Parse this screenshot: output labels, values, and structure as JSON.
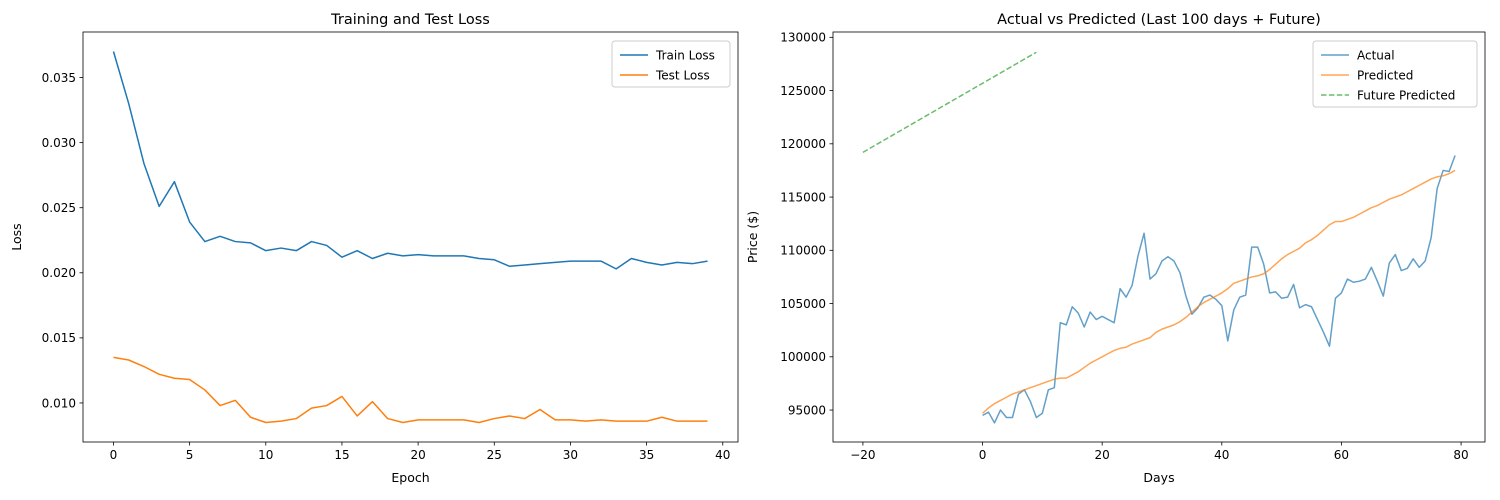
{
  "chart_data": [
    {
      "type": "line",
      "title": "Training and Test Loss",
      "xlabel": "Epoch",
      "ylabel": "Loss",
      "xlim": [
        -2,
        41
      ],
      "ylim": [
        0.007,
        0.0385
      ],
      "xticks": [
        0,
        5,
        10,
        15,
        20,
        25,
        30,
        35,
        40
      ],
      "xtick_labels": [
        "0",
        "5",
        "10",
        "15",
        "20",
        "25",
        "30",
        "35",
        "40"
      ],
      "yticks": [
        0.01,
        0.015,
        0.02,
        0.025,
        0.03,
        0.035
      ],
      "ytick_labels": [
        "0.010",
        "0.015",
        "0.020",
        "0.025",
        "0.030",
        "0.035"
      ],
      "grid": false,
      "legend_position": "top-right",
      "series": [
        {
          "name": "Train Loss",
          "color": "#1f77b4",
          "style": "solid",
          "x_start": 0,
          "values": [
            0.037,
            0.033,
            0.0284,
            0.0251,
            0.027,
            0.0239,
            0.0224,
            0.0228,
            0.0224,
            0.0223,
            0.0217,
            0.0219,
            0.0217,
            0.0224,
            0.0221,
            0.0212,
            0.0217,
            0.0211,
            0.0215,
            0.0213,
            0.0214,
            0.0213,
            0.0213,
            0.0213,
            0.0211,
            0.021,
            0.0205,
            0.0206,
            0.0207,
            0.0208,
            0.0209,
            0.0209,
            0.0209,
            0.0203,
            0.0211,
            0.0208,
            0.0206,
            0.0208,
            0.0207,
            0.0209
          ]
        },
        {
          "name": "Test Loss",
          "color": "#ff7f0e",
          "style": "solid",
          "x_start": 0,
          "values": [
            0.0135,
            0.0133,
            0.0128,
            0.0122,
            0.0119,
            0.0118,
            0.011,
            0.0098,
            0.0102,
            0.0089,
            0.0085,
            0.0086,
            0.0088,
            0.0096,
            0.0098,
            0.0105,
            0.009,
            0.0101,
            0.0088,
            0.0085,
            0.0087,
            0.0087,
            0.0087,
            0.0087,
            0.0085,
            0.0088,
            0.009,
            0.0088,
            0.0095,
            0.0087,
            0.0087,
            0.0086,
            0.0087,
            0.0086,
            0.0086,
            0.0086,
            0.0089,
            0.0086,
            0.0086,
            0.0086
          ]
        }
      ]
    },
    {
      "type": "line",
      "title": "Actual vs Predicted (Last 100 days + Future)",
      "xlabel": "Days",
      "ylabel": "Price ($)",
      "xlim": [
        -25,
        84
      ],
      "ylim": [
        92000,
        130500
      ],
      "xticks": [
        -20,
        0,
        20,
        40,
        60,
        80
      ],
      "xtick_labels": [
        "−20",
        "0",
        "20",
        "40",
        "60",
        "80"
      ],
      "yticks": [
        95000,
        100000,
        105000,
        110000,
        115000,
        120000,
        125000,
        130000
      ],
      "ytick_labels": [
        "95000",
        "100000",
        "105000",
        "110000",
        "115000",
        "120000",
        "125000",
        "130000"
      ],
      "grid": false,
      "legend_position": "top-right",
      "series": [
        {
          "name": "Actual",
          "color": "#1f77b4",
          "style": "solid",
          "opacity": 0.7,
          "x_start": 0,
          "values": [
            94500,
            94800,
            93800,
            95000,
            94300,
            94300,
            96500,
            96900,
            95800,
            94300,
            94700,
            96900,
            97100,
            103200,
            103000,
            104700,
            104100,
            102800,
            104200,
            103500,
            103800,
            103500,
            103200,
            106400,
            105600,
            106700,
            109500,
            111600,
            107300,
            107800,
            109000,
            109400,
            109000,
            107900,
            105700,
            104000,
            104600,
            105600,
            105800,
            105400,
            104800,
            101500,
            104400,
            105600,
            105800,
            110300,
            110300,
            108700,
            106000,
            106100,
            105500,
            105600,
            106800,
            104600,
            104900,
            104700,
            103500,
            102300,
            101000,
            105500,
            106000,
            107300,
            107000,
            107100,
            107300,
            108400,
            107100,
            105700,
            108800,
            109600,
            108100,
            108300,
            109200,
            108400,
            109000,
            111200,
            115800,
            117500,
            117400,
            118900
          ]
        },
        {
          "name": "Predicted",
          "color": "#ff7f0e",
          "style": "solid",
          "opacity": 0.7,
          "x_start": 0,
          "values": [
            94700,
            95200,
            95600,
            95900,
            96200,
            96500,
            96700,
            96900,
            97100,
            97300,
            97500,
            97700,
            97900,
            98000,
            98000,
            98300,
            98600,
            99000,
            99400,
            99700,
            100000,
            100300,
            100600,
            100800,
            100900,
            101200,
            101400,
            101600,
            101800,
            102300,
            102600,
            102800,
            103000,
            103300,
            103700,
            104200,
            104700,
            105100,
            105400,
            105700,
            106000,
            106400,
            106900,
            107100,
            107300,
            107500,
            107600,
            107800,
            108200,
            108700,
            109200,
            109600,
            109900,
            110200,
            110700,
            111000,
            111400,
            111900,
            112400,
            112700,
            112700,
            112900,
            113100,
            113400,
            113700,
            114000,
            114200,
            114500,
            114800,
            115000,
            115200,
            115500,
            115800,
            116100,
            116400,
            116700,
            116900,
            117000,
            117200,
            117500
          ]
        },
        {
          "name": "Future Predicted",
          "color": "#2ca02c",
          "style": "dashed",
          "opacity": 0.7,
          "x": [
            -20,
            9
          ],
          "y": [
            119200,
            128600
          ]
        }
      ]
    }
  ]
}
